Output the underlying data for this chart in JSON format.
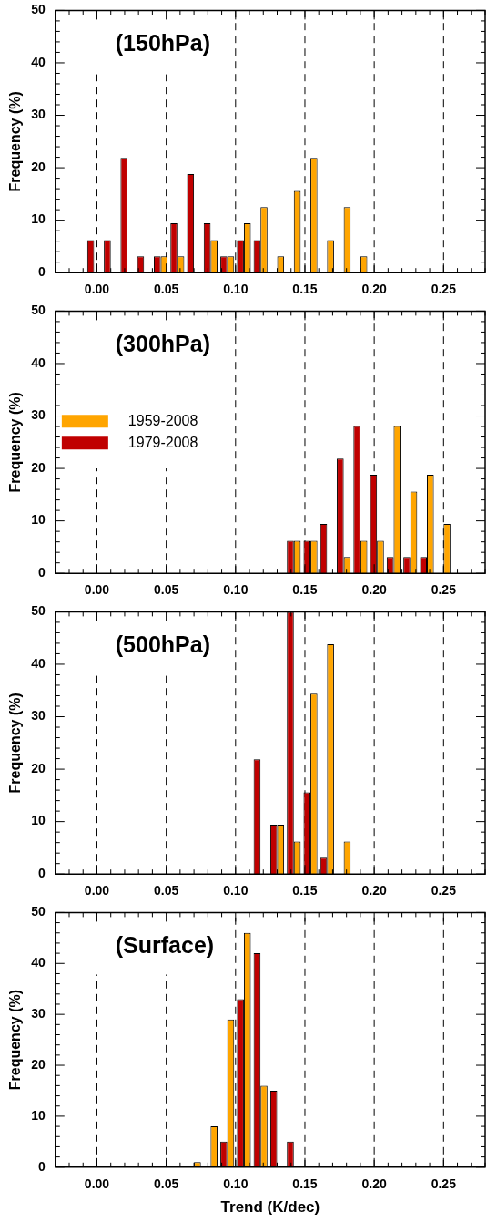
{
  "chart_data": [
    {
      "type": "histogram",
      "title": "(150hPa)",
      "ylabel": "Frequency (%)",
      "bins": [
        -0.008,
        0.004,
        0.016,
        0.028,
        0.04,
        0.052,
        0.064,
        0.076,
        0.088,
        0.1,
        0.112,
        0.124,
        0.136,
        0.148,
        0.16,
        0.172,
        0.184,
        0.196,
        0.208,
        0.22,
        0.232,
        0.244,
        0.256
      ],
      "series": [
        {
          "color": "#ffa500",
          "values": [
            0,
            0,
            0,
            0,
            3.1,
            3.1,
            0,
            6.2,
            3.1,
            9.4,
            12.5,
            3.1,
            15.6,
            21.9,
            6.2,
            12.5,
            3.1,
            0,
            0,
            0,
            0,
            0
          ]
        },
        {
          "color": "#c00000",
          "values": [
            6.2,
            6.2,
            21.9,
            3.1,
            3.1,
            9.4,
            18.8,
            9.4,
            3.1,
            6.2,
            6.2,
            0,
            0,
            0,
            0,
            0,
            0,
            0,
            0,
            0,
            0,
            0
          ]
        }
      ],
      "xlim": [
        -0.03,
        0.28
      ],
      "xticks": [
        {
          "value": 0,
          "label": "0.00"
        },
        0.05,
        {
          "value": 0.1,
          "label": "0.10"
        },
        0.15,
        {
          "value": 0.2,
          "label": "0.20"
        },
        0.25
      ],
      "ylim": [
        0,
        50
      ],
      "yticks": [
        0,
        10,
        20,
        30,
        40,
        50
      ],
      "grid": "x"
    },
    {
      "type": "histogram",
      "title": "(300hPa)",
      "ylabel": "Frequency (%)",
      "bins": [
        -0.008,
        0.004,
        0.016,
        0.028,
        0.04,
        0.052,
        0.064,
        0.076,
        0.088,
        0.1,
        0.112,
        0.124,
        0.136,
        0.148,
        0.16,
        0.172,
        0.184,
        0.196,
        0.208,
        0.22,
        0.232,
        0.244,
        0.256
      ],
      "series": [
        {
          "name": "1959-2008",
          "color": "#ffa500",
          "values": [
            0,
            0,
            0,
            0,
            0,
            0,
            0,
            0,
            0,
            0,
            0,
            0,
            6.2,
            6.2,
            0,
            3.1,
            6.2,
            6.2,
            28.1,
            15.6,
            18.8,
            9.4
          ]
        },
        {
          "name": "1979-2008",
          "color": "#c00000",
          "values": [
            0,
            0,
            0,
            0,
            0,
            0,
            0,
            0,
            0,
            0,
            0,
            0,
            6.2,
            6.2,
            9.4,
            21.9,
            28.1,
            18.8,
            3.1,
            3.1,
            3.1,
            0
          ]
        }
      ],
      "xlim": [
        -0.03,
        0.28
      ],
      "xticks": [
        {
          "value": 0,
          "label": "0.00"
        },
        0.05,
        {
          "value": 0.1,
          "label": "0.10"
        },
        0.15,
        {
          "value": 0.2,
          "label": "0.20"
        },
        0.25
      ],
      "ylim": [
        0,
        50
      ],
      "yticks": [
        0,
        10,
        20,
        30,
        40,
        50
      ],
      "grid": "x",
      "legend": "left"
    },
    {
      "type": "histogram",
      "title": "(500hPa)",
      "ylabel": "Frequency (%)",
      "bins": [
        -0.008,
        0.004,
        0.016,
        0.028,
        0.04,
        0.052,
        0.064,
        0.076,
        0.088,
        0.1,
        0.112,
        0.124,
        0.136,
        0.148,
        0.16,
        0.172,
        0.184,
        0.196,
        0.208,
        0.22,
        0.232,
        0.244,
        0.256
      ],
      "series": [
        {
          "color": "#ffa500",
          "values": [
            0,
            0,
            0,
            0,
            0,
            0,
            0,
            0,
            0,
            0,
            0,
            9.4,
            6.2,
            34.4,
            43.8,
            6.2,
            0,
            0,
            0,
            0,
            0,
            0
          ]
        },
        {
          "color": "#c00000",
          "values": [
            0,
            0,
            0,
            0,
            0,
            0,
            0,
            0,
            0,
            0,
            21.9,
            9.4,
            50,
            15.6,
            3.1,
            0,
            0,
            0,
            0,
            0,
            0,
            0
          ]
        }
      ],
      "xlim": [
        -0.03,
        0.28
      ],
      "xticks": [
        {
          "value": 0,
          "label": "0.00"
        },
        0.05,
        {
          "value": 0.1,
          "label": "0.10"
        },
        0.15,
        {
          "value": 0.2,
          "label": "0.20"
        },
        0.25
      ],
      "ylim": [
        0,
        50
      ],
      "yticks": [
        0,
        10,
        20,
        30,
        40,
        50
      ],
      "grid": "x"
    },
    {
      "type": "histogram",
      "title": "(Surface)",
      "ylabel": "Frequency (%)",
      "xlabel": "Trend (K/dec)",
      "bins": [
        -0.008,
        0.004,
        0.016,
        0.028,
        0.04,
        0.052,
        0.064,
        0.076,
        0.088,
        0.1,
        0.112,
        0.124,
        0.136,
        0.148,
        0.16,
        0.172,
        0.184,
        0.196,
        0.208,
        0.22,
        0.232,
        0.244,
        0.256
      ],
      "series": [
        {
          "color": "#ffa500",
          "values": [
            0,
            0,
            0,
            0,
            0,
            0,
            1,
            8,
            29,
            46,
            16,
            0,
            0,
            0,
            0,
            0,
            0,
            0,
            0,
            0,
            0,
            0
          ]
        },
        {
          "color": "#c00000",
          "values": [
            0,
            0,
            0,
            0,
            0,
            0,
            0,
            0,
            5,
            33,
            42,
            15,
            5,
            0,
            0,
            0,
            0,
            0,
            0,
            0,
            0,
            0
          ]
        }
      ],
      "xlim": [
        -0.03,
        0.28
      ],
      "xticks": [
        {
          "value": 0,
          "label": "0.00"
        },
        0.05,
        {
          "value": 0.1,
          "label": "0.10"
        },
        0.15,
        {
          "value": 0.2,
          "label": "0.20"
        },
        0.25
      ],
      "ylim": [
        0,
        50
      ],
      "yticks": [
        0,
        10,
        20,
        30,
        40,
        50
      ],
      "grid": "x"
    }
  ]
}
